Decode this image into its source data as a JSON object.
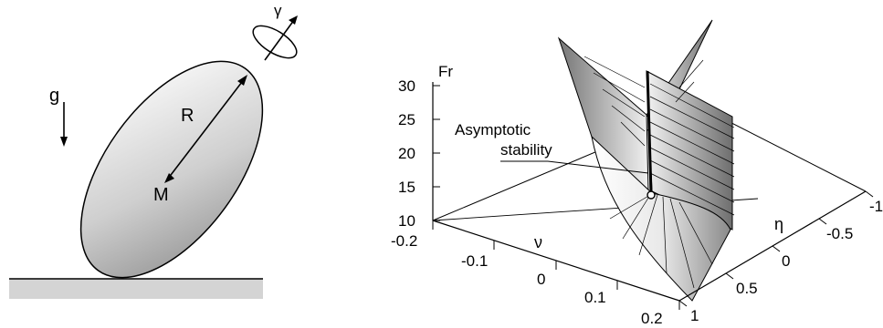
{
  "left_figure": {
    "gravity_label": "g",
    "radius_label": "R",
    "mass_label": "M",
    "spin_label": "γ"
  },
  "right_figure": {
    "fr_axis": {
      "label": "Fr",
      "ticks": [
        "10",
        "15",
        "20",
        "25",
        "30"
      ]
    },
    "nu_axis": {
      "label": "ν",
      "ticks": [
        "-0.2",
        "-0.1",
        "0",
        "0.1",
        "0.2"
      ]
    },
    "eta_axis": {
      "label": "η",
      "ticks": [
        "-1",
        "-0.5",
        "0",
        "0.5",
        "1"
      ]
    },
    "annotation": [
      "Asymptotic",
      "stability"
    ],
    "colors": {
      "surface_light": "#f2f2f2",
      "surface_dark": "#7a7a7a",
      "ground": "#d4d4d4"
    }
  }
}
